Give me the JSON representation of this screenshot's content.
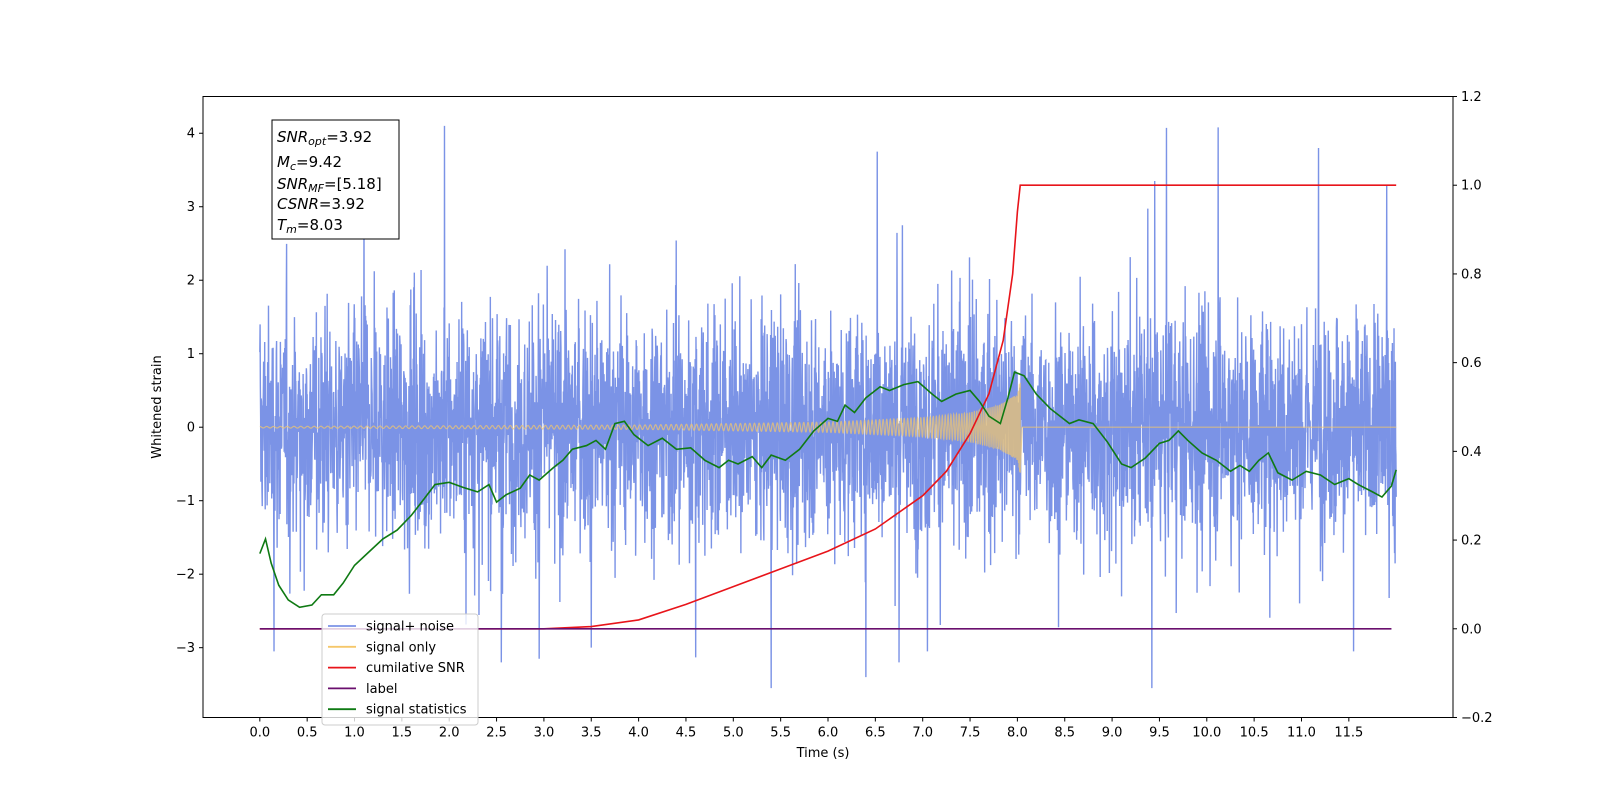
{
  "chart_data": {
    "type": "line",
    "xlabel": "Time (s)",
    "ylabel": "Whitened strain",
    "xlim": [
      -0.6,
      12.6
    ],
    "ylim": [
      -3.95,
      4.5
    ],
    "y2lim": [
      -0.2,
      1.2
    ],
    "x_ticks": [
      0.0,
      0.5,
      1.0,
      1.5,
      2.0,
      2.5,
      3.0,
      3.5,
      4.0,
      4.5,
      5.0,
      5.5,
      6.0,
      6.5,
      7.0,
      7.5,
      8.0,
      8.5,
      9.0,
      9.5,
      10.0,
      10.5,
      11.0,
      11.5
    ],
    "x_tick_labels": [
      "0.0",
      "0.5",
      "1.0",
      "1.5",
      "2.0",
      "2.5",
      "3.0",
      "3.5",
      "4.0",
      "4.5",
      "5.0",
      "5.5",
      "6.0",
      "6.5",
      "7.0",
      "7.5",
      "8.0",
      "8.5",
      "9.0",
      "9.5",
      "10.0",
      "10.5",
      "11.0",
      "11.5"
    ],
    "y_ticks": [
      -3,
      -2,
      -1,
      0,
      1,
      2,
      3,
      4
    ],
    "y_tick_labels": [
      "−3",
      "−2",
      "−1",
      "0",
      "1",
      "2",
      "3",
      "4"
    ],
    "y2_ticks": [
      -0.2,
      0.0,
      0.2,
      0.4,
      0.6,
      0.8,
      1.0,
      1.2
    ],
    "y2_tick_labels": [
      "−0.2",
      "0.0",
      "0.2",
      "0.4",
      "0.6",
      "0.8",
      "1.0",
      "1.2"
    ],
    "grid": false,
    "legend_placement": "lower-left",
    "annotation": {
      "lines": [
        {
          "main": "SNR",
          "sub": "opt",
          "value": "=3.92"
        },
        {
          "main": "M",
          "sub": "c",
          "value": "=9.42"
        },
        {
          "main": "SNR",
          "sub": "MF",
          "value": "=[5.18]"
        },
        {
          "main": "CSNR",
          "sub": "",
          "value": "=3.92"
        },
        {
          "main": "T",
          "sub": "m",
          "value": "=8.03"
        }
      ]
    },
    "series": [
      {
        "name": "signal+ noise",
        "color": "#7b93e6",
        "axis": "left",
        "kind": "noise",
        "x_range": [
          0.0,
          12.0
        ],
        "typical_range": [
          -1.6,
          1.6
        ],
        "extremes": [
          {
            "x": 1.95,
            "y": 4.1
          },
          {
            "x": 10.12,
            "y": 4.08
          },
          {
            "x": 11.18,
            "y": 3.8
          },
          {
            "x": 6.52,
            "y": 3.75
          },
          {
            "x": 9.45,
            "y": 3.35
          },
          {
            "x": 2.95,
            "y": 3.35
          },
          {
            "x": 11.9,
            "y": 3.3
          },
          {
            "x": 1.1,
            "y": 3.1
          },
          {
            "x": 5.4,
            "y": -3.55
          },
          {
            "x": 9.42,
            "y": -3.55
          },
          {
            "x": 6.4,
            "y": -3.4
          },
          {
            "x": 2.55,
            "y": -3.2
          },
          {
            "x": 2.95,
            "y": -3.15
          },
          {
            "x": 6.75,
            "y": -3.2
          },
          {
            "x": 0.15,
            "y": -3.05
          },
          {
            "x": 11.55,
            "y": -3.05
          },
          {
            "x": 7.05,
            "y": -3.05
          },
          {
            "x": 3.5,
            "y": -3.0
          }
        ]
      },
      {
        "name": "signal only",
        "color": "#f5c76a",
        "axis": "left",
        "kind": "chirp",
        "t_merger": 8.03,
        "envelope": [
          {
            "x": 0.0,
            "y": 0.01
          },
          {
            "x": 4.0,
            "y": 0.03
          },
          {
            "x": 6.0,
            "y": 0.07
          },
          {
            "x": 7.0,
            "y": 0.13
          },
          {
            "x": 7.5,
            "y": 0.2
          },
          {
            "x": 7.8,
            "y": 0.3
          },
          {
            "x": 8.0,
            "y": 0.45
          },
          {
            "x": 8.03,
            "y": 0.65
          }
        ]
      },
      {
        "name": "cumilative SNR",
        "color": "#e8141a",
        "axis": "right",
        "points": [
          {
            "x": 0.0,
            "y": 0.0
          },
          {
            "x": 3.0,
            "y": 0.0
          },
          {
            "x": 3.5,
            "y": 0.005
          },
          {
            "x": 4.0,
            "y": 0.02
          },
          {
            "x": 4.5,
            "y": 0.055
          },
          {
            "x": 5.0,
            "y": 0.095
          },
          {
            "x": 5.5,
            "y": 0.135
          },
          {
            "x": 6.0,
            "y": 0.175
          },
          {
            "x": 6.5,
            "y": 0.225
          },
          {
            "x": 7.0,
            "y": 0.3
          },
          {
            "x": 7.25,
            "y": 0.355
          },
          {
            "x": 7.5,
            "y": 0.44
          },
          {
            "x": 7.7,
            "y": 0.53
          },
          {
            "x": 7.85,
            "y": 0.65
          },
          {
            "x": 7.95,
            "y": 0.8
          },
          {
            "x": 8.0,
            "y": 0.94
          },
          {
            "x": 8.03,
            "y": 1.0
          },
          {
            "x": 12.0,
            "y": 1.0
          }
        ]
      },
      {
        "name": "label",
        "color": "#6a0f6e",
        "axis": "right",
        "points": [
          {
            "x": 0.0,
            "y": 0.0
          },
          {
            "x": 11.95,
            "y": 0.0
          }
        ]
      },
      {
        "name": "signal statistics",
        "color": "#0f7a13",
        "axis": "left",
        "points": [
          {
            "x": 0.0,
            "y": -1.72
          },
          {
            "x": 0.06,
            "y": -1.52
          },
          {
            "x": 0.12,
            "y": -1.85
          },
          {
            "x": 0.2,
            "y": -2.15
          },
          {
            "x": 0.3,
            "y": -2.35
          },
          {
            "x": 0.42,
            "y": -2.45
          },
          {
            "x": 0.55,
            "y": -2.42
          },
          {
            "x": 0.65,
            "y": -2.28
          },
          {
            "x": 0.78,
            "y": -2.28
          },
          {
            "x": 0.88,
            "y": -2.12
          },
          {
            "x": 1.0,
            "y": -1.88
          },
          {
            "x": 1.15,
            "y": -1.7
          },
          {
            "x": 1.3,
            "y": -1.52
          },
          {
            "x": 1.45,
            "y": -1.4
          },
          {
            "x": 1.6,
            "y": -1.2
          },
          {
            "x": 1.75,
            "y": -0.95
          },
          {
            "x": 1.85,
            "y": -0.78
          },
          {
            "x": 2.0,
            "y": -0.75
          },
          {
            "x": 2.15,
            "y": -0.82
          },
          {
            "x": 2.3,
            "y": -0.88
          },
          {
            "x": 2.42,
            "y": -0.78
          },
          {
            "x": 2.5,
            "y": -1.02
          },
          {
            "x": 2.6,
            "y": -0.92
          },
          {
            "x": 2.75,
            "y": -0.83
          },
          {
            "x": 2.85,
            "y": -0.65
          },
          {
            "x": 2.95,
            "y": -0.72
          },
          {
            "x": 3.1,
            "y": -0.55
          },
          {
            "x": 3.2,
            "y": -0.45
          },
          {
            "x": 3.3,
            "y": -0.3
          },
          {
            "x": 3.45,
            "y": -0.25
          },
          {
            "x": 3.55,
            "y": -0.18
          },
          {
            "x": 3.65,
            "y": -0.3
          },
          {
            "x": 3.75,
            "y": 0.05
          },
          {
            "x": 3.85,
            "y": 0.08
          },
          {
            "x": 3.95,
            "y": -0.1
          },
          {
            "x": 4.1,
            "y": -0.25
          },
          {
            "x": 4.25,
            "y": -0.15
          },
          {
            "x": 4.4,
            "y": -0.3
          },
          {
            "x": 4.55,
            "y": -0.28
          },
          {
            "x": 4.7,
            "y": -0.45
          },
          {
            "x": 4.85,
            "y": -0.55
          },
          {
            "x": 4.95,
            "y": -0.45
          },
          {
            "x": 5.05,
            "y": -0.5
          },
          {
            "x": 5.2,
            "y": -0.4
          },
          {
            "x": 5.3,
            "y": -0.55
          },
          {
            "x": 5.4,
            "y": -0.38
          },
          {
            "x": 5.55,
            "y": -0.45
          },
          {
            "x": 5.7,
            "y": -0.3
          },
          {
            "x": 5.85,
            "y": -0.05
          },
          {
            "x": 6.0,
            "y": 0.12
          },
          {
            "x": 6.1,
            "y": 0.08
          },
          {
            "x": 6.18,
            "y": 0.3
          },
          {
            "x": 6.28,
            "y": 0.2
          },
          {
            "x": 6.4,
            "y": 0.4
          },
          {
            "x": 6.55,
            "y": 0.55
          },
          {
            "x": 6.65,
            "y": 0.5
          },
          {
            "x": 6.8,
            "y": 0.58
          },
          {
            "x": 6.95,
            "y": 0.62
          },
          {
            "x": 7.1,
            "y": 0.45
          },
          {
            "x": 7.2,
            "y": 0.35
          },
          {
            "x": 7.35,
            "y": 0.45
          },
          {
            "x": 7.5,
            "y": 0.5
          },
          {
            "x": 7.6,
            "y": 0.35
          },
          {
            "x": 7.7,
            "y": 0.15
          },
          {
            "x": 7.82,
            "y": 0.05
          },
          {
            "x": 7.9,
            "y": 0.4
          },
          {
            "x": 7.97,
            "y": 0.75
          },
          {
            "x": 8.07,
            "y": 0.7
          },
          {
            "x": 8.2,
            "y": 0.45
          },
          {
            "x": 8.35,
            "y": 0.25
          },
          {
            "x": 8.55,
            "y": 0.05
          },
          {
            "x": 8.65,
            "y": 0.1
          },
          {
            "x": 8.8,
            "y": 0.05
          },
          {
            "x": 8.95,
            "y": -0.2
          },
          {
            "x": 9.1,
            "y": -0.5
          },
          {
            "x": 9.2,
            "y": -0.55
          },
          {
            "x": 9.35,
            "y": -0.42
          },
          {
            "x": 9.5,
            "y": -0.22
          },
          {
            "x": 9.6,
            "y": -0.18
          },
          {
            "x": 9.7,
            "y": -0.05
          },
          {
            "x": 9.8,
            "y": -0.18
          },
          {
            "x": 9.95,
            "y": -0.35
          },
          {
            "x": 10.1,
            "y": -0.45
          },
          {
            "x": 10.25,
            "y": -0.6
          },
          {
            "x": 10.35,
            "y": -0.52
          },
          {
            "x": 10.45,
            "y": -0.6
          },
          {
            "x": 10.55,
            "y": -0.45
          },
          {
            "x": 10.65,
            "y": -0.35
          },
          {
            "x": 10.75,
            "y": -0.62
          },
          {
            "x": 10.9,
            "y": -0.72
          },
          {
            "x": 11.05,
            "y": -0.6
          },
          {
            "x": 11.2,
            "y": -0.65
          },
          {
            "x": 11.35,
            "y": -0.78
          },
          {
            "x": 11.5,
            "y": -0.7
          },
          {
            "x": 11.6,
            "y": -0.78
          },
          {
            "x": 11.75,
            "y": -0.88
          },
          {
            "x": 11.85,
            "y": -0.95
          },
          {
            "x": 11.95,
            "y": -0.8
          },
          {
            "x": 12.0,
            "y": -0.58
          }
        ]
      }
    ],
    "legend": [
      {
        "label": "signal+ noise",
        "color": "#7b93e6"
      },
      {
        "label": "signal only",
        "color": "#f5c76a"
      },
      {
        "label": "cumilative SNR",
        "color": "#e8141a"
      },
      {
        "label": "label",
        "color": "#6a0f6e"
      },
      {
        "label": "signal statistics",
        "color": "#0f7a13"
      }
    ]
  }
}
